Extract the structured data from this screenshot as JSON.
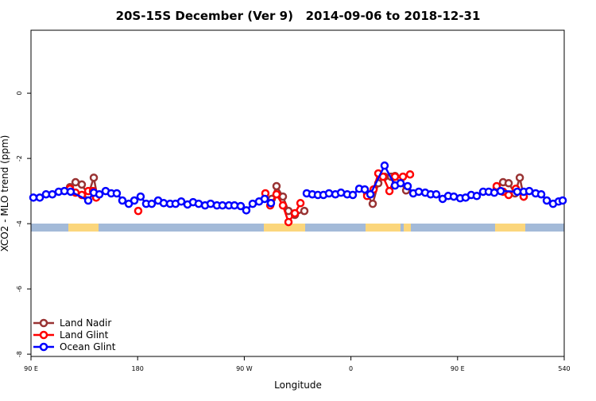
{
  "chart_data": {
    "type": "line",
    "title": "20S-15S December (Ver 9)   2014-09-06 to 2018-12-31",
    "x_label": "Longitude",
    "y_label": "XCO2 - MLO trend (ppm)",
    "xlim": [
      90,
      540
    ],
    "ylim": [
      -8.07,
      1.93
    ],
    "xticks": [
      {
        "value": 90,
        "label": "90 E"
      },
      180,
      {
        "value": 270,
        "label": "90 W"
      },
      {
        "value": 360,
        "label": "0"
      },
      {
        "value": 450,
        "label": "90 E"
      },
      540
    ],
    "yticks": [
      -8,
      -6,
      -4,
      -2,
      0
    ],
    "legend": "bottom-left",
    "series": [
      {
        "name": "Land Nadir",
        "color": "#993333",
        "x": [
          122.9,
          127.6,
          132.9,
          138.3,
          143,
          145.7,
          293.2,
          297.2,
          302.6,
          307.3,
          312.7,
          320.7,
          373.7,
          378.4,
          383.1,
          388.4,
          393.8,
          397.2,
          406.6,
          483,
          488.4,
          493.1,
          498.5,
          502.5,
          505.8
        ],
        "values": [
          -2.88,
          -2.73,
          -2.8,
          -3.12,
          -2.59,
          -3.12,
          -3.24,
          -2.85,
          -3.17,
          -3.61,
          -3.73,
          -3.61,
          -3.1,
          -3.39,
          -2.76,
          -2.56,
          -2.56,
          -2.54,
          -2.98,
          -2.9,
          -2.73,
          -2.76,
          -3.07,
          -2.59,
          -3.17
        ]
      },
      {
        "name": "Land Glint",
        "color": "#ff0000",
        "x": [
          122.9,
          127.6,
          132.9,
          138.3,
          142.3,
          145,
          180.5,
          287.8,
          291.9,
          297.2,
          302.6,
          307.3,
          312.7,
          317.4,
          373.7,
          379.1,
          383.1,
          387.1,
          392.5,
          397.2,
          403.9,
          409.9,
          483,
          488.4,
          493.1,
          499.2,
          505.8
        ],
        "values": [
          -2.93,
          -3.05,
          -3.12,
          -3,
          -3,
          -3.2,
          -3.61,
          -3.07,
          -3.44,
          -3.1,
          -3.44,
          -3.95,
          -3.68,
          -3.37,
          -3.15,
          -2.95,
          -2.46,
          -2.56,
          -3,
          -2.56,
          -2.56,
          -2.49,
          -2.85,
          -3.02,
          -3.12,
          -2.93,
          -3.17
        ]
      },
      {
        "name": "Ocean Glint",
        "color": "#0000ff",
        "x": [
          92,
          97.4,
          102.7,
          108,
          113.4,
          118.2,
          123.5,
          138.3,
          143,
          147.7,
          153,
          157.7,
          162.4,
          167.1,
          172.5,
          177.2,
          182.5,
          187.2,
          191.9,
          197.3,
          202,
          207.4,
          212,
          216.8,
          222.1,
          226.8,
          231.5,
          236.9,
          241.6,
          246.9,
          251.6,
          257,
          261.7,
          267,
          271.7,
          277.1,
          282.5,
          287.2,
          292.5,
          322.7,
          327.4,
          332.1,
          336.8,
          341.5,
          346.9,
          351.6,
          356.9,
          361.6,
          367,
          371.7,
          376.4,
          388.4,
          397.2,
          401.9,
          407.9,
          412.6,
          417.3,
          422.7,
          427.3,
          432,
          437.4,
          442.1,
          446.8,
          452.2,
          456.8,
          461.5,
          466.2,
          471.6,
          476.3,
          481,
          486.4,
          500.4,
          505.8,
          510.5,
          515.9,
          520.6,
          525.3,
          530.6,
          535.3,
          538.7
        ],
        "values": [
          -3.2,
          -3.2,
          -3.1,
          -3.1,
          -3.02,
          -3,
          -3.02,
          -3.29,
          -3.05,
          -3.1,
          -3,
          -3.07,
          -3.07,
          -3.29,
          -3.39,
          -3.29,
          -3.17,
          -3.39,
          -3.39,
          -3.29,
          -3.37,
          -3.39,
          -3.39,
          -3.32,
          -3.41,
          -3.34,
          -3.39,
          -3.44,
          -3.39,
          -3.44,
          -3.44,
          -3.44,
          -3.44,
          -3.46,
          -3.59,
          -3.39,
          -3.32,
          -3.24,
          -3.37,
          -3.07,
          -3.1,
          -3.12,
          -3.12,
          -3.07,
          -3.1,
          -3.05,
          -3.1,
          -3.12,
          -2.93,
          -2.95,
          -3.1,
          -2.22,
          -2.83,
          -2.76,
          -2.85,
          -3.07,
          -3.02,
          -3.05,
          -3.1,
          -3.1,
          -3.24,
          -3.15,
          -3.17,
          -3.22,
          -3.2,
          -3.12,
          -3.15,
          -3.02,
          -3.02,
          -3.05,
          -3,
          -3.02,
          -3.02,
          -3,
          -3.07,
          -3.1,
          -3.29,
          -3.39,
          -3.32,
          -3.29
        ]
      }
    ]
  }
}
